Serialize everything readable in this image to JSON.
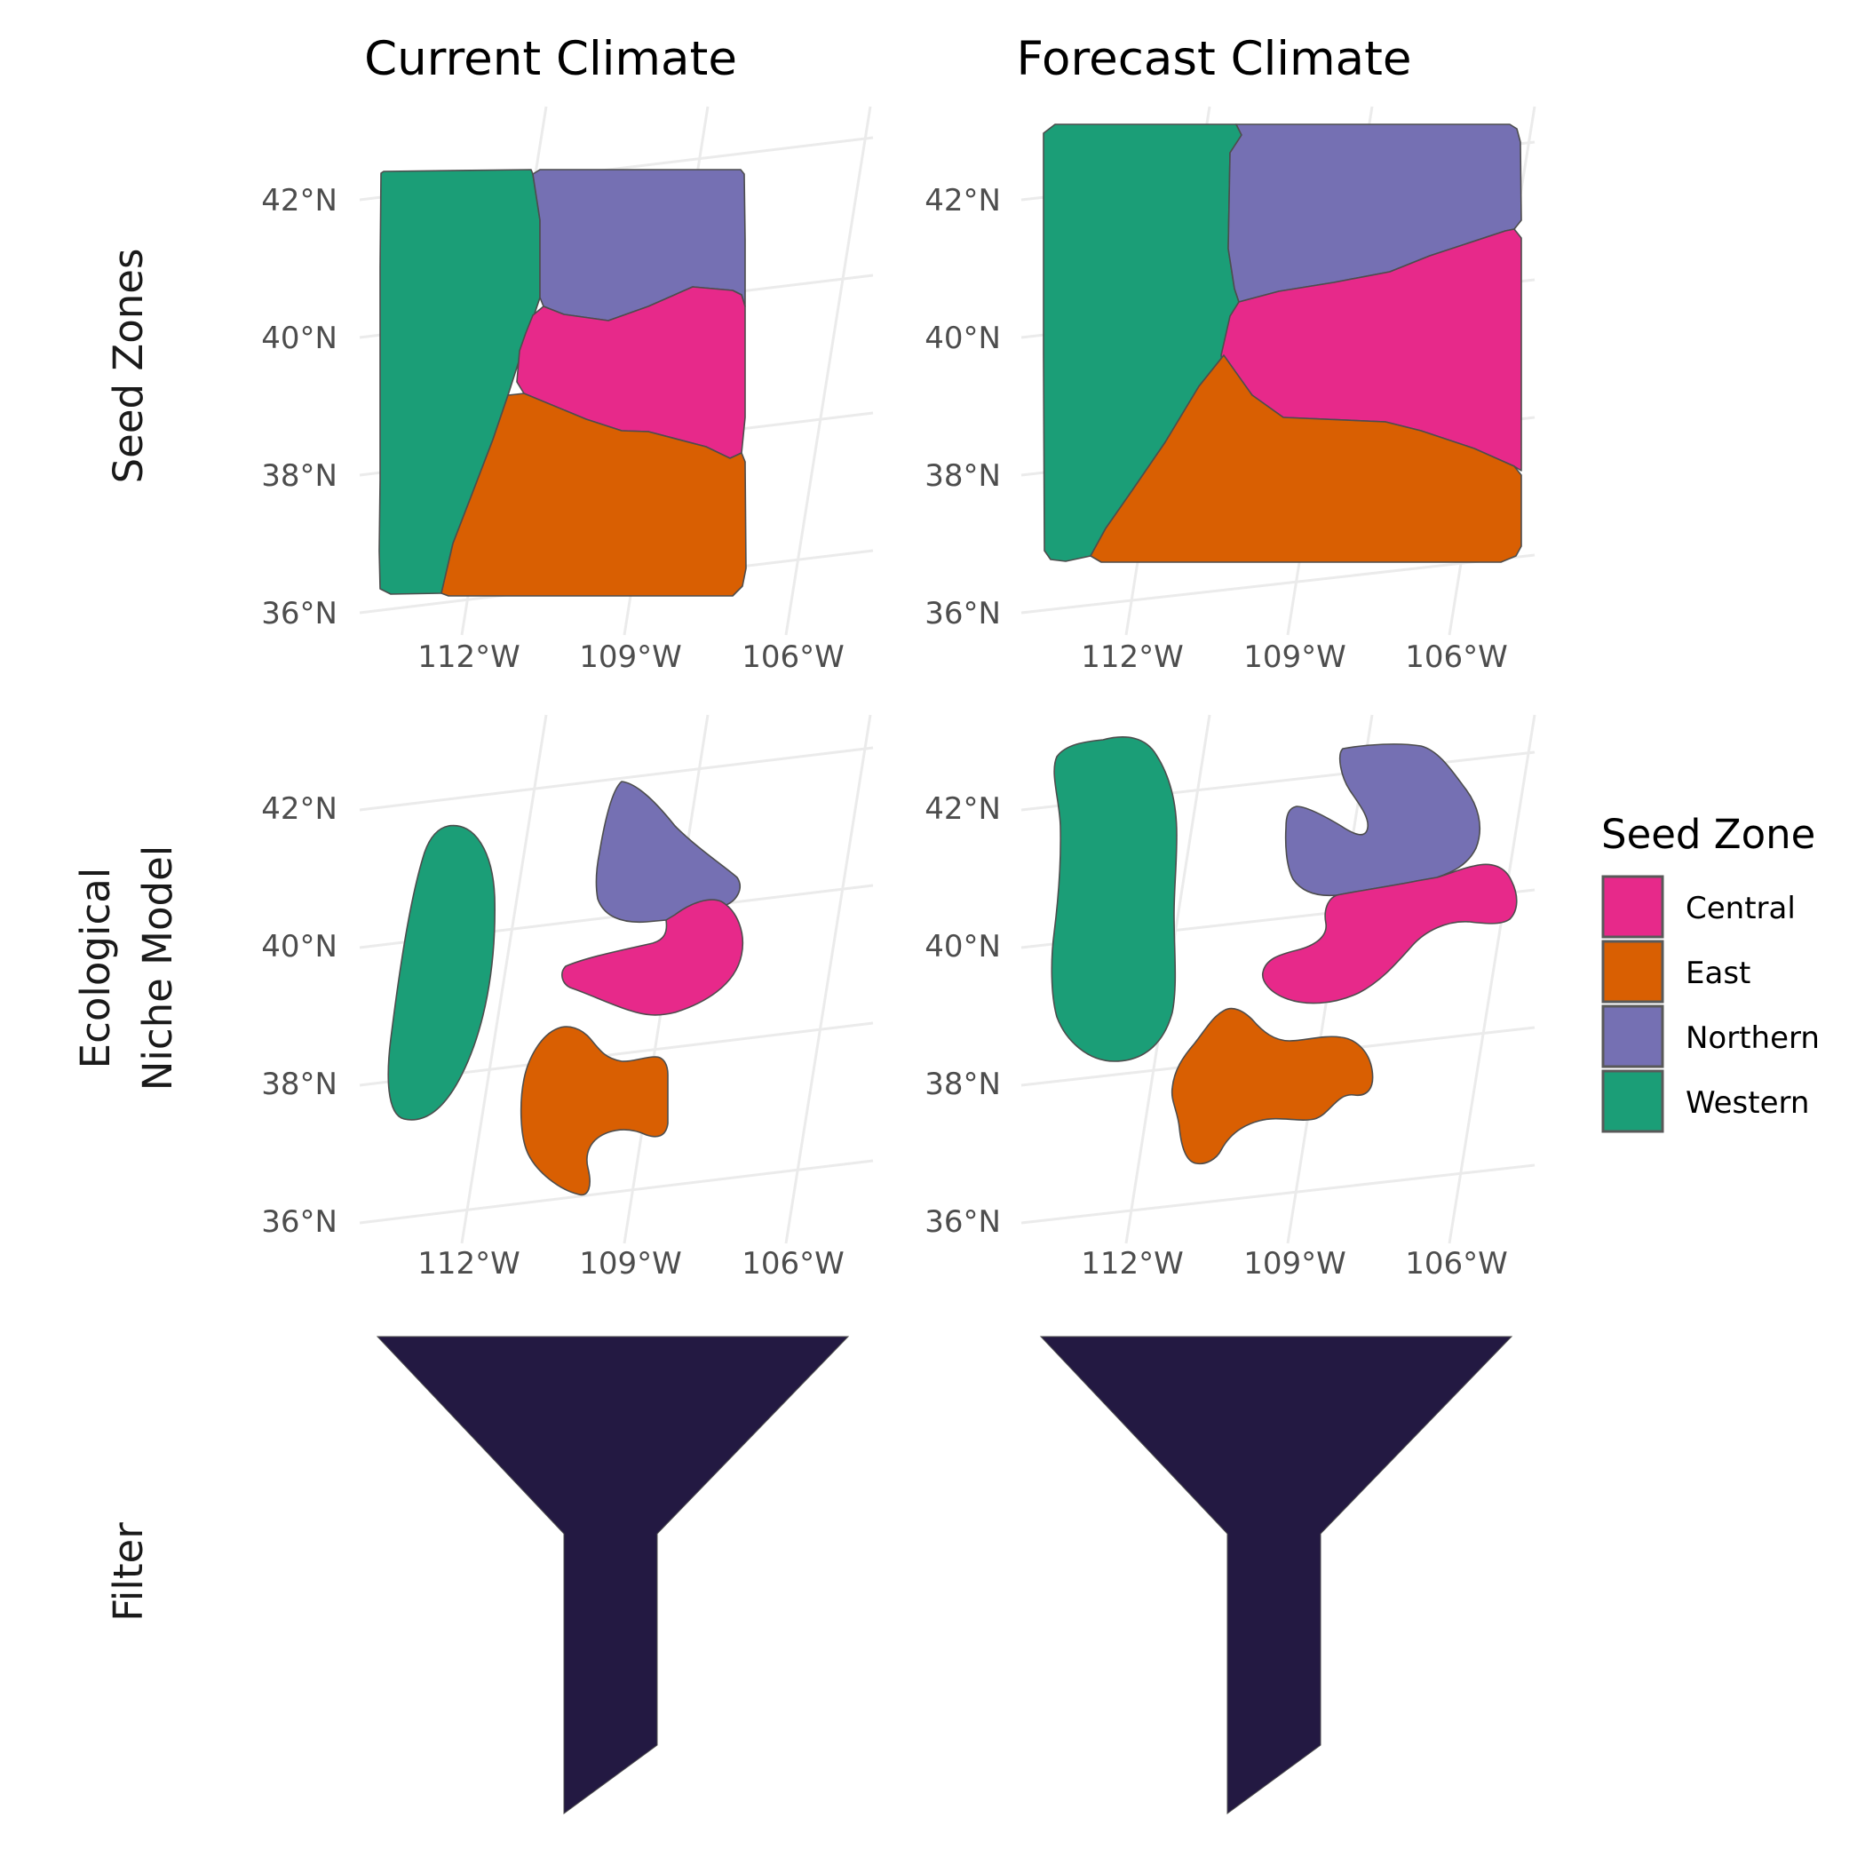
{
  "columns": [
    {
      "title": "Current Climate"
    },
    {
      "title": "Forecast Climate"
    }
  ],
  "rows": [
    {
      "title_lines": [
        "Seed Zones"
      ]
    },
    {
      "title_lines": [
        "Ecological",
        "Niche Model"
      ]
    },
    {
      "title_lines": [
        "Filter"
      ]
    }
  ],
  "axes": {
    "lat_labels": [
      "42°N",
      "40°N",
      "38°N",
      "36°N"
    ],
    "lon_labels": [
      "112°W",
      "109°W",
      "106°W"
    ]
  },
  "legend": {
    "title": "Seed Zone",
    "items": [
      {
        "label": "Central",
        "color": "#E7298A"
      },
      {
        "label": "East",
        "color": "#D95F02"
      },
      {
        "label": "Northern",
        "color": "#7570B3"
      },
      {
        "label": "Western",
        "color": "#1B9E77"
      }
    ]
  },
  "colors": {
    "central": "#E7298A",
    "east": "#D95F02",
    "northern": "#7570B3",
    "western": "#1B9E77",
    "filter": "#231942"
  },
  "map_panels": [
    {
      "row": "seed-zones",
      "column": "current-climate",
      "zones": [
        "Western",
        "Northern",
        "Central",
        "East"
      ]
    },
    {
      "row": "seed-zones",
      "column": "forecast-climate",
      "zones": [
        "Western",
        "Northern",
        "Central",
        "East"
      ]
    },
    {
      "row": "ecological-niche-model",
      "column": "current-climate",
      "zones": [
        "Western",
        "Northern",
        "Central",
        "East"
      ]
    },
    {
      "row": "ecological-niche-model",
      "column": "forecast-climate",
      "zones": [
        "Western",
        "Northern",
        "Central",
        "East"
      ]
    }
  ]
}
